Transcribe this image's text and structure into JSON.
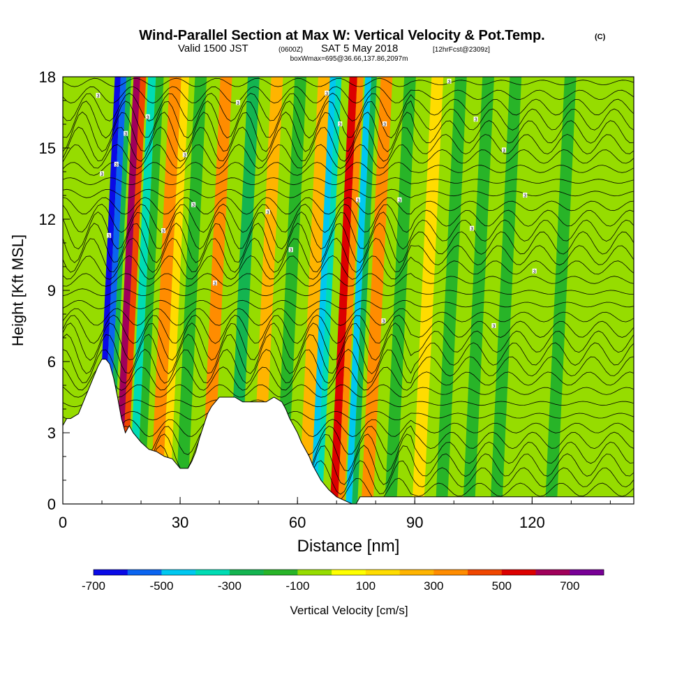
{
  "title": {
    "main": "Wind-Parallel Section at Max W: Vertical Velocity & Pot.Temp.",
    "main_tag": "(C)",
    "valid_prefix": "Valid 1500 JST",
    "valid_utc": "(0600Z)",
    "valid_date": "SAT 5 May 2018",
    "forecast": "[12hrFcst@2309z]",
    "box": "boxWmax=695@36.66,137.86,2097m"
  },
  "chart_data": {
    "type": "heatmap",
    "xlabel": "Distance [nm]",
    "ylabel": "Height [Kft MSL]",
    "xlim": [
      0,
      146
    ],
    "ylim": [
      0,
      18
    ],
    "x_ticks": [
      0,
      30,
      60,
      90,
      120
    ],
    "y_ticks": [
      0,
      3,
      6,
      9,
      12,
      15,
      18
    ],
    "x_minor_step": 10,
    "y_minor_step": 1,
    "colorbar": {
      "label": "Vertical Velocity [cm/s]",
      "tick_labels": [
        "-700",
        "-500",
        "-300",
        "-100",
        "100",
        "300",
        "500",
        "700"
      ],
      "tick_values": [
        -700,
        -500,
        -300,
        -100,
        100,
        300,
        500,
        700
      ],
      "range": [
        -700,
        800
      ],
      "colors": [
        "#0a0ae6",
        "#0a64f0",
        "#00c8f0",
        "#00dcb4",
        "#14b450",
        "#28b428",
        "#96dc00",
        "#ffff00",
        "#ffdc00",
        "#ffb400",
        "#ff8c00",
        "#f04600",
        "#dc0000",
        "#a0005a",
        "#780096"
      ]
    },
    "velocity_bands": [
      {
        "x": 10,
        "w": 1.5,
        "value": -650
      },
      {
        "x": 11.5,
        "w": 1.5,
        "value": -550
      },
      {
        "x": 13,
        "w": 1.2,
        "value": -300
      },
      {
        "x": 14.8,
        "w": 1.8,
        "value": 650
      },
      {
        "x": 16.5,
        "w": 1.5,
        "value": 400
      },
      {
        "x": 18.5,
        "w": 2,
        "value": -350
      },
      {
        "x": 20.5,
        "w": 2,
        "value": -150
      },
      {
        "x": 24,
        "w": 3,
        "value": 300
      },
      {
        "x": 27,
        "w": 2,
        "value": 150
      },
      {
        "x": 30.5,
        "w": 3,
        "value": -200
      },
      {
        "x": 37,
        "w": 3,
        "value": 300
      },
      {
        "x": 44,
        "w": 3,
        "value": -250
      },
      {
        "x": 50,
        "w": 3,
        "value": 250
      },
      {
        "x": 56,
        "w": 3,
        "value": -200
      },
      {
        "x": 62,
        "w": 3,
        "value": 200
      },
      {
        "x": 65,
        "w": 1.6,
        "value": -500
      },
      {
        "x": 66.6,
        "w": 1.4,
        "value": -400
      },
      {
        "x": 70,
        "w": 2,
        "value": 550
      },
      {
        "x": 72,
        "w": 1.6,
        "value": 350
      },
      {
        "x": 74,
        "w": 1.6,
        "value": -450
      },
      {
        "x": 75.6,
        "w": 1.4,
        "value": -300
      },
      {
        "x": 78,
        "w": 3,
        "value": 350
      },
      {
        "x": 84,
        "w": 3,
        "value": -150
      },
      {
        "x": 91,
        "w": 3,
        "value": 120
      },
      {
        "x": 97,
        "w": 3,
        "value": -150
      },
      {
        "x": 104,
        "w": 3,
        "value": -120
      },
      {
        "x": 111,
        "w": 3,
        "value": -150
      },
      {
        "x": 118,
        "w": 3,
        "value": -100
      },
      {
        "x": 125,
        "w": 3,
        "value": -120
      },
      {
        "x": 132,
        "w": 3,
        "value": -100
      },
      {
        "x": 139,
        "w": 3,
        "value": -100
      }
    ],
    "terrain": {
      "x": [
        0,
        1,
        2,
        4,
        5,
        6,
        7,
        8,
        9,
        10,
        11,
        12,
        13,
        14,
        15,
        16,
        17,
        18,
        20,
        22,
        24,
        26,
        28,
        30,
        32,
        33,
        34,
        35,
        36,
        37,
        38,
        39,
        40,
        42,
        44,
        46,
        48,
        50,
        52,
        54,
        56,
        57,
        58,
        59,
        60,
        61,
        62,
        63,
        64,
        65,
        66,
        68,
        70,
        72,
        74,
        75,
        76,
        78,
        146
      ],
      "height_kft": [
        3.3,
        3.6,
        3.6,
        3.8,
        4.2,
        4.6,
        5.0,
        5.4,
        5.8,
        6.1,
        6.1,
        5.9,
        5.3,
        4.5,
        3.6,
        3.0,
        3.3,
        3.0,
        2.6,
        2.3,
        2.2,
        2.0,
        1.9,
        1.5,
        1.5,
        1.8,
        2.2,
        2.8,
        3.3,
        3.8,
        4.1,
        4.3,
        4.5,
        4.5,
        4.5,
        4.3,
        4.3,
        4.3,
        4.3,
        4.5,
        4.3,
        4.0,
        3.6,
        3.3,
        3.0,
        2.6,
        2.3,
        2.0,
        1.6,
        1.3,
        1.0,
        0.6,
        0.3,
        0.15,
        0.0,
        0.0,
        0.3,
        0.3,
        0.3
      ]
    },
    "isentrope_labels": [
      {
        "x": 9,
        "y": 17.2,
        "text": "3"
      },
      {
        "x": 10,
        "y": 13.9,
        "text": "3"
      },
      {
        "x": 11.8,
        "y": 11.3,
        "text": "3"
      },
      {
        "x": 13.7,
        "y": 14.3,
        "text": "3"
      },
      {
        "x": 16.1,
        "y": 15.6,
        "text": "3"
      },
      {
        "x": 21.7,
        "y": 16.3,
        "text": "3"
      },
      {
        "x": 25.7,
        "y": 11.5,
        "text": "3"
      },
      {
        "x": 31.2,
        "y": 14.7,
        "text": "3"
      },
      {
        "x": 33.4,
        "y": 12.6,
        "text": "3"
      },
      {
        "x": 38.9,
        "y": 9.3,
        "text": "3"
      },
      {
        "x": 44.8,
        "y": 16.9,
        "text": "3"
      },
      {
        "x": 52.4,
        "y": 12.3,
        "text": "3"
      },
      {
        "x": 58.3,
        "y": 10.7,
        "text": "3"
      },
      {
        "x": 67.5,
        "y": 17.3,
        "text": "3"
      },
      {
        "x": 70.9,
        "y": 16.0,
        "text": "3"
      },
      {
        "x": 75.5,
        "y": 12.8,
        "text": "3"
      },
      {
        "x": 82.3,
        "y": 16.0,
        "text": "3"
      },
      {
        "x": 86.1,
        "y": 12.8,
        "text": "3"
      },
      {
        "x": 98.8,
        "y": 17.8,
        "text": "3"
      },
      {
        "x": 105.6,
        "y": 16.2,
        "text": "3"
      },
      {
        "x": 112.8,
        "y": 14.9,
        "text": "3"
      },
      {
        "x": 118.2,
        "y": 13.0,
        "text": "3"
      },
      {
        "x": 104.6,
        "y": 11.6,
        "text": "3"
      },
      {
        "x": 110.2,
        "y": 7.5,
        "text": "3"
      },
      {
        "x": 120.6,
        "y": 9.8,
        "text": "3"
      },
      {
        "x": 82.0,
        "y": 7.7,
        "text": "3"
      }
    ]
  }
}
